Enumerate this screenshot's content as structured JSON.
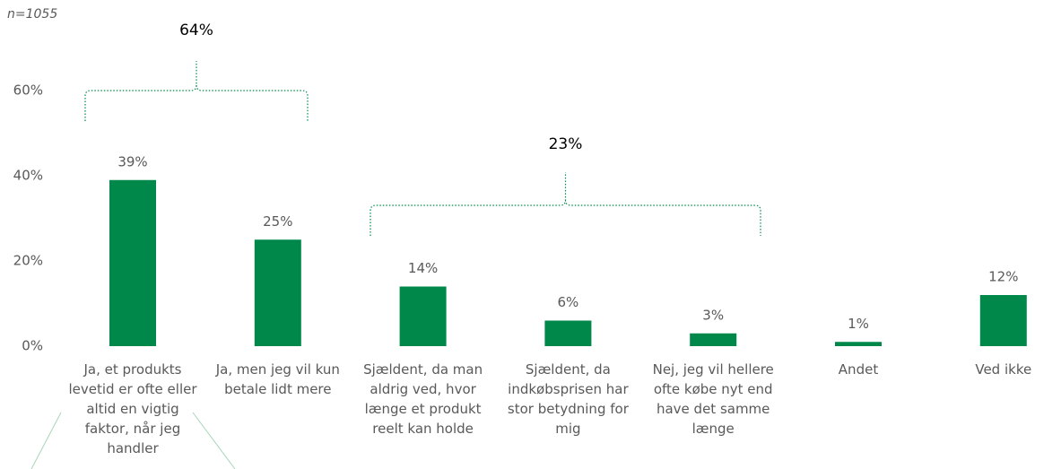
{
  "chart_data": {
    "type": "bar",
    "note": "n=1055",
    "categories": [
      "Ja, et produkts levetid er ofte eller altid en vigtig faktor, når jeg handler",
      "Ja, men jeg vil kun betale lidt mere",
      "Sjældent, da man aldrig ved, hvor længe et produkt reelt kan holde",
      "Sjældent, da indkøbsprisen har stor betydning for mig",
      "Nej, jeg vil hellere ofte købe nyt end have det samme længe",
      "Andet",
      "Ved ikke"
    ],
    "values": [
      39,
      25,
      14,
      6,
      3,
      1,
      12
    ],
    "value_labels": [
      "39%",
      "25%",
      "14%",
      "6%",
      "3%",
      "1%",
      "12%"
    ],
    "color": "#00884a",
    "ylim": [
      0,
      70
    ],
    "yticks": [
      {
        "value": 0,
        "label": "0%"
      },
      {
        "value": 20,
        "label": "20%"
      },
      {
        "value": 40,
        "label": "40%"
      },
      {
        "value": 60,
        "label": "60%"
      }
    ],
    "annotations": [
      {
        "text": "64%"
      },
      {
        "text": "23%"
      }
    ]
  }
}
